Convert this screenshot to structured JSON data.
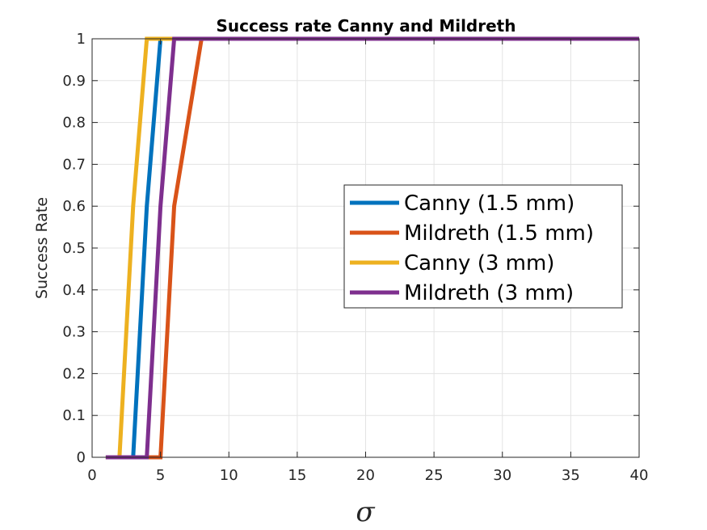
{
  "chart_data": {
    "type": "line",
    "title": "Success rate Canny and Mildreth",
    "xlabel": "σ",
    "ylabel": "Success Rate",
    "xlim": [
      0,
      40
    ],
    "ylim": [
      0,
      1
    ],
    "xticks": [
      0,
      5,
      10,
      15,
      20,
      25,
      30,
      35,
      40
    ],
    "yticks": [
      0,
      0.1,
      0.2,
      0.3,
      0.4,
      0.5,
      0.6,
      0.7,
      0.8,
      0.9,
      1
    ],
    "ytick_labels": [
      "0",
      "0.1",
      "0.2",
      "0.3",
      "0.4",
      "0.5",
      "0.6",
      "0.7",
      "0.8",
      "0.9",
      "1"
    ],
    "grid": true,
    "legend_position": "right-center",
    "series": [
      {
        "name": "Canny (1.5 mm)",
        "color": "#0072BD",
        "x": [
          1,
          2,
          3,
          4,
          5,
          6,
          8,
          10,
          15,
          20,
          25,
          30,
          35,
          40
        ],
        "y": [
          0,
          0,
          0,
          0.6,
          1,
          1,
          1,
          1,
          1,
          1,
          1,
          1,
          1,
          1
        ]
      },
      {
        "name": "Mildreth (1.5 mm)",
        "color": "#D95319",
        "x": [
          1,
          2,
          3,
          4,
          5,
          6,
          8,
          10,
          15,
          20,
          25,
          30,
          35,
          40
        ],
        "y": [
          0,
          0,
          0,
          0,
          0,
          0.6,
          1,
          1,
          1,
          1,
          1,
          1,
          1,
          1
        ]
      },
      {
        "name": "Canny (3 mm)",
        "color": "#EDB120",
        "x": [
          1,
          2,
          3,
          4,
          5,
          6,
          8,
          10,
          15,
          20,
          25,
          30,
          35,
          40
        ],
        "y": [
          0,
          0,
          0.6,
          1,
          1,
          1,
          1,
          1,
          1,
          1,
          1,
          1,
          1,
          1
        ]
      },
      {
        "name": "Mildreth (3 mm)",
        "color": "#7E2F8E",
        "x": [
          1,
          2,
          3,
          4,
          5,
          6,
          8,
          10,
          15,
          20,
          25,
          30,
          35,
          40
        ],
        "y": [
          0,
          0,
          0,
          0,
          0.6,
          1,
          1,
          1,
          1,
          1,
          1,
          1,
          1,
          1
        ]
      }
    ]
  }
}
